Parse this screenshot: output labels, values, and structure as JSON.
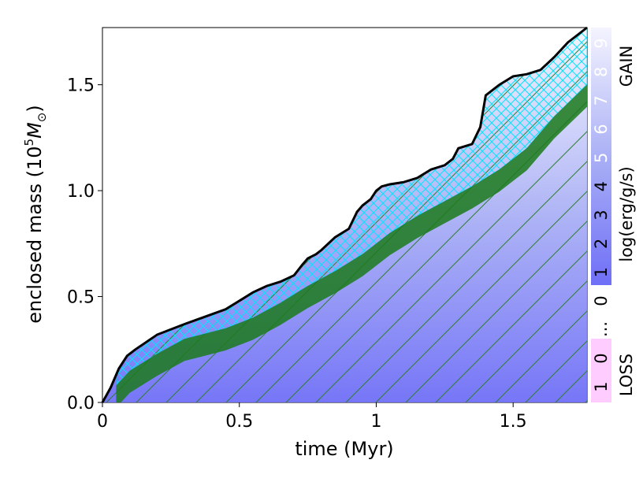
{
  "chart_data": {
    "type": "area",
    "xlabel": "time (Myr)",
    "ylabel_main": "enclosed mass (10",
    "ylabel_exp": "5",
    "ylabel_unit": "M",
    "ylabel_sub": "⊙",
    "ylabel_close": ")",
    "xlim": [
      0,
      1.77
    ],
    "ylim": [
      0,
      1.77
    ],
    "xticks": [
      0,
      0.5,
      1,
      1.5
    ],
    "xtick_labels": [
      "0",
      "0.5",
      "1",
      "1.5"
    ],
    "yticks": [
      0,
      0.5,
      1.0,
      1.5
    ],
    "ytick_labels": [
      "0.0",
      "0.5",
      "1.0",
      "1.5"
    ],
    "colorbar": {
      "label": "log(erg/g/s)",
      "gain_label": "GAIN",
      "loss_label": "LOSS",
      "gain_ticks": [
        "0",
        "1",
        "2",
        "3",
        "4",
        "5",
        "6",
        "7",
        "8",
        "9"
      ],
      "ellipsis": "...",
      "loss_ticks": [
        "0",
        "1"
      ],
      "gain_color": "#6666ff",
      "loss_color": "#ffccff"
    },
    "series": [
      {
        "kind": "total_mass",
        "color": "#000000",
        "x": [
          0,
          0.03,
          0.06,
          0.09,
          0.12,
          0.2,
          0.3,
          0.45,
          0.55,
          0.6,
          0.65,
          0.7,
          0.73,
          0.75,
          0.78,
          0.8,
          0.85,
          0.9,
          0.93,
          0.95,
          0.98,
          1.0,
          1.02,
          1.05,
          1.1,
          1.15,
          1.2,
          1.25,
          1.28,
          1.3,
          1.35,
          1.38,
          1.4,
          1.45,
          1.5,
          1.55,
          1.6,
          1.65,
          1.7,
          1.77
        ],
        "y": [
          0,
          0.07,
          0.16,
          0.22,
          0.25,
          0.32,
          0.37,
          0.44,
          0.52,
          0.55,
          0.57,
          0.6,
          0.65,
          0.68,
          0.7,
          0.72,
          0.78,
          0.82,
          0.9,
          0.93,
          0.96,
          1.0,
          1.02,
          1.03,
          1.04,
          1.06,
          1.1,
          1.12,
          1.15,
          1.2,
          1.22,
          1.3,
          1.45,
          1.5,
          1.54,
          1.55,
          1.57,
          1.63,
          1.7,
          1.77
        ]
      },
      {
        "kind": "convective_shell_top",
        "color": "#007700",
        "x": [
          0.05,
          0.1,
          0.2,
          0.3,
          0.45,
          0.55,
          0.65,
          0.75,
          0.85,
          0.95,
          1.05,
          1.15,
          1.25,
          1.35,
          1.45,
          1.55,
          1.65,
          1.77
        ],
        "y": [
          0.08,
          0.15,
          0.23,
          0.3,
          0.35,
          0.4,
          0.47,
          0.55,
          0.62,
          0.7,
          0.8,
          0.88,
          0.95,
          1.02,
          1.1,
          1.2,
          1.35,
          1.5
        ]
      }
    ]
  }
}
